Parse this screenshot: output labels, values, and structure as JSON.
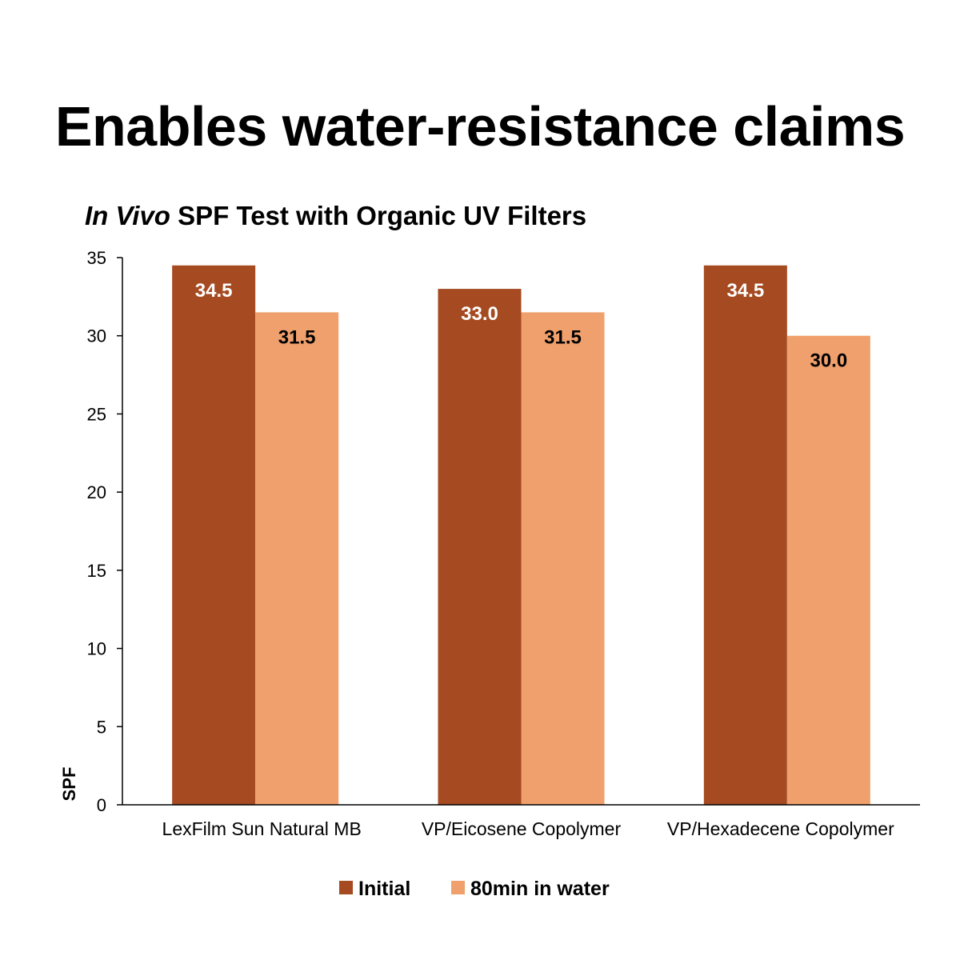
{
  "headline": "Enables water-resistance claims",
  "chart_data": {
    "type": "bar",
    "title_italic": "In Vivo",
    "title_rest": " SPF Test with Organic UV Filters",
    "ylabel": "SPF",
    "xlabel": "",
    "ylim": [
      0,
      35
    ],
    "yticks": [
      0,
      5,
      10,
      15,
      20,
      25,
      30,
      35
    ],
    "categories": [
      "LexFilm Sun Natural MB",
      "VP/Eicosene Copolymer",
      "VP/Hexadecene Copolymer"
    ],
    "series": [
      {
        "name": "Initial",
        "values": [
          34.5,
          33.0,
          34.5
        ],
        "labels": [
          "34.5",
          "33.0",
          "34.5"
        ],
        "color": "#A54A21",
        "label_color": "#FFFFFF"
      },
      {
        "name": "80min in water",
        "values": [
          31.5,
          31.5,
          30.0
        ],
        "labels": [
          "31.5",
          "31.5",
          "30.0"
        ],
        "color": "#F0A06D",
        "label_color": "#000000"
      }
    ],
    "legend_position": "bottom",
    "grid": false
  }
}
